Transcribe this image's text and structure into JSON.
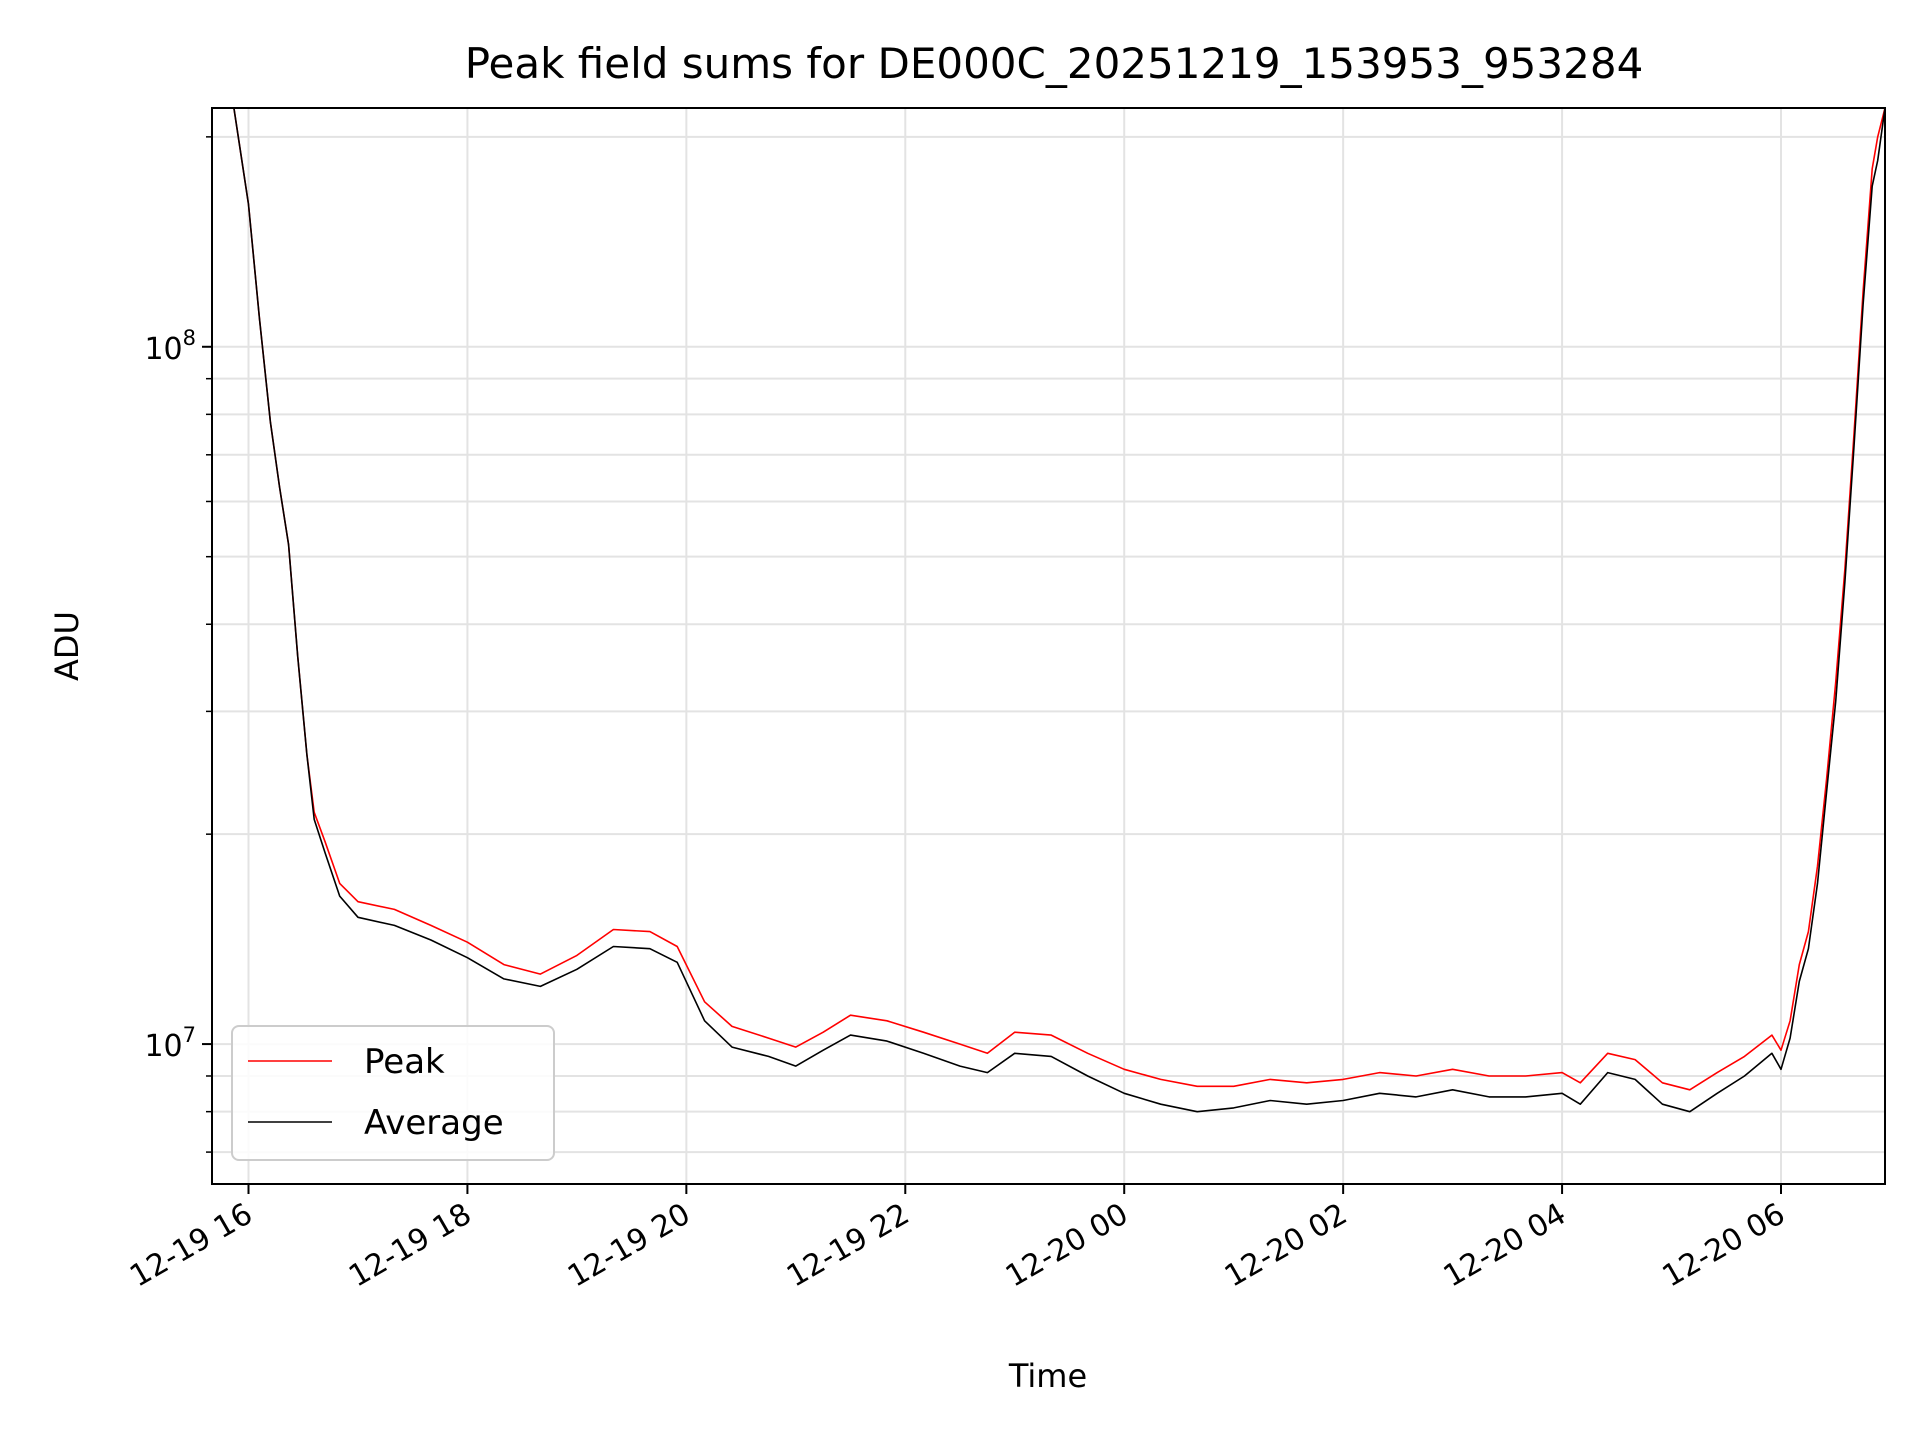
{
  "chart_data": {
    "type": "line",
    "title": "Peak field sums for DE000C_20251219_153953_953284",
    "xlabel": "Time",
    "ylabel": "ADU",
    "yscale": "log",
    "xlim": [
      "2025-12-19 15:40",
      "2025-12-20 06:57"
    ],
    "ylim": [
      6300000,
      220000000
    ],
    "x_ticks": [
      "12-19 16",
      "12-19 18",
      "12-19 20",
      "12-19 22",
      "12-20 00",
      "12-20 02",
      "12-20 04",
      "12-20 06"
    ],
    "y_ticks": [
      {
        "value": 10000000,
        "base": "10",
        "exp": "7"
      },
      {
        "value": 100000000,
        "base": "10",
        "exp": "8"
      }
    ],
    "grid": true,
    "legend_position": "lower-left",
    "series": [
      {
        "name": "Peak",
        "color": "#ff0000",
        "points": [
          [
            "2025-12-19 15:52",
            220000000
          ],
          [
            "2025-12-19 16:00",
            160000000
          ],
          [
            "2025-12-19 16:06",
            110000000
          ],
          [
            "2025-12-19 16:12",
            78000000
          ],
          [
            "2025-12-19 16:17",
            63000000
          ],
          [
            "2025-12-19 16:22",
            52000000
          ],
          [
            "2025-12-19 16:27",
            36000000
          ],
          [
            "2025-12-19 16:32",
            26000000
          ],
          [
            "2025-12-19 16:36",
            21500000
          ],
          [
            "2025-12-19 16:42",
            19500000
          ],
          [
            "2025-12-19 16:50",
            17000000
          ],
          [
            "2025-12-19 17:00",
            16000000
          ],
          [
            "2025-12-19 17:20",
            15600000
          ],
          [
            "2025-12-19 17:40",
            14800000
          ],
          [
            "2025-12-19 18:00",
            14000000
          ],
          [
            "2025-12-19 18:20",
            13000000
          ],
          [
            "2025-12-19 18:40",
            12600000
          ],
          [
            "2025-12-19 19:00",
            13400000
          ],
          [
            "2025-12-19 19:20",
            14600000
          ],
          [
            "2025-12-19 19:40",
            14500000
          ],
          [
            "2025-12-19 19:55",
            13800000
          ],
          [
            "2025-12-19 20:10",
            11500000
          ],
          [
            "2025-12-19 20:25",
            10600000
          ],
          [
            "2025-12-19 20:45",
            10200000
          ],
          [
            "2025-12-19 21:00",
            9900000
          ],
          [
            "2025-12-19 21:15",
            10400000
          ],
          [
            "2025-12-19 21:30",
            11000000
          ],
          [
            "2025-12-19 21:50",
            10800000
          ],
          [
            "2025-12-19 22:10",
            10400000
          ],
          [
            "2025-12-19 22:30",
            10000000
          ],
          [
            "2025-12-19 22:45",
            9700000
          ],
          [
            "2025-12-19 23:00",
            10400000
          ],
          [
            "2025-12-19 23:20",
            10300000
          ],
          [
            "2025-12-19 23:40",
            9700000
          ],
          [
            "2025-12-20 00:00",
            9200000
          ],
          [
            "2025-12-20 00:20",
            8900000
          ],
          [
            "2025-12-20 00:40",
            8700000
          ],
          [
            "2025-12-20 01:00",
            8700000
          ],
          [
            "2025-12-20 01:20",
            8900000
          ],
          [
            "2025-12-20 01:40",
            8800000
          ],
          [
            "2025-12-20 02:00",
            8900000
          ],
          [
            "2025-12-20 02:20",
            9100000
          ],
          [
            "2025-12-20 02:40",
            9000000
          ],
          [
            "2025-12-20 03:00",
            9200000
          ],
          [
            "2025-12-20 03:20",
            9000000
          ],
          [
            "2025-12-20 03:40",
            9000000
          ],
          [
            "2025-12-20 04:00",
            9100000
          ],
          [
            "2025-12-20 04:10",
            8800000
          ],
          [
            "2025-12-20 04:25",
            9700000
          ],
          [
            "2025-12-20 04:40",
            9500000
          ],
          [
            "2025-12-20 04:55",
            8800000
          ],
          [
            "2025-12-20 05:10",
            8600000
          ],
          [
            "2025-12-20 05:25",
            9100000
          ],
          [
            "2025-12-20 05:40",
            9600000
          ],
          [
            "2025-12-20 05:55",
            10300000
          ],
          [
            "2025-12-20 06:00",
            9800000
          ],
          [
            "2025-12-20 06:05",
            10800000
          ],
          [
            "2025-12-20 06:10",
            13000000
          ],
          [
            "2025-12-20 06:15",
            14500000
          ],
          [
            "2025-12-20 06:20",
            18000000
          ],
          [
            "2025-12-20 06:25",
            24000000
          ],
          [
            "2025-12-20 06:30",
            33000000
          ],
          [
            "2025-12-20 06:35",
            48000000
          ],
          [
            "2025-12-20 06:40",
            75000000
          ],
          [
            "2025-12-20 06:45",
            120000000
          ],
          [
            "2025-12-20 06:50",
            180000000
          ],
          [
            "2025-12-20 06:53",
            200000000
          ],
          [
            "2025-12-20 06:57",
            220000000
          ]
        ]
      },
      {
        "name": "Average",
        "color": "#000000",
        "points": [
          [
            "2025-12-19 15:52",
            220000000
          ],
          [
            "2025-12-19 16:00",
            160000000
          ],
          [
            "2025-12-19 16:06",
            110000000
          ],
          [
            "2025-12-19 16:12",
            78000000
          ],
          [
            "2025-12-19 16:17",
            63000000
          ],
          [
            "2025-12-19 16:22",
            52000000
          ],
          [
            "2025-12-19 16:27",
            36000000
          ],
          [
            "2025-12-19 16:32",
            26000000
          ],
          [
            "2025-12-19 16:36",
            21000000
          ],
          [
            "2025-12-19 16:42",
            18800000
          ],
          [
            "2025-12-19 16:50",
            16300000
          ],
          [
            "2025-12-19 17:00",
            15200000
          ],
          [
            "2025-12-19 17:20",
            14800000
          ],
          [
            "2025-12-19 17:40",
            14100000
          ],
          [
            "2025-12-19 18:00",
            13300000
          ],
          [
            "2025-12-19 18:20",
            12400000
          ],
          [
            "2025-12-19 18:40",
            12100000
          ],
          [
            "2025-12-19 19:00",
            12800000
          ],
          [
            "2025-12-19 19:20",
            13800000
          ],
          [
            "2025-12-19 19:40",
            13700000
          ],
          [
            "2025-12-19 19:55",
            13100000
          ],
          [
            "2025-12-19 20:10",
            10800000
          ],
          [
            "2025-12-19 20:25",
            9900000
          ],
          [
            "2025-12-19 20:45",
            9600000
          ],
          [
            "2025-12-19 21:00",
            9300000
          ],
          [
            "2025-12-19 21:15",
            9800000
          ],
          [
            "2025-12-19 21:30",
            10300000
          ],
          [
            "2025-12-19 21:50",
            10100000
          ],
          [
            "2025-12-19 22:10",
            9700000
          ],
          [
            "2025-12-19 22:30",
            9300000
          ],
          [
            "2025-12-19 22:45",
            9100000
          ],
          [
            "2025-12-19 23:00",
            9700000
          ],
          [
            "2025-12-19 23:20",
            9600000
          ],
          [
            "2025-12-19 23:40",
            9000000
          ],
          [
            "2025-12-20 00:00",
            8500000
          ],
          [
            "2025-12-20 00:20",
            8200000
          ],
          [
            "2025-12-20 00:40",
            8000000
          ],
          [
            "2025-12-20 01:00",
            8100000
          ],
          [
            "2025-12-20 01:20",
            8300000
          ],
          [
            "2025-12-20 01:40",
            8200000
          ],
          [
            "2025-12-20 02:00",
            8300000
          ],
          [
            "2025-12-20 02:20",
            8500000
          ],
          [
            "2025-12-20 02:40",
            8400000
          ],
          [
            "2025-12-20 03:00",
            8600000
          ],
          [
            "2025-12-20 03:20",
            8400000
          ],
          [
            "2025-12-20 03:40",
            8400000
          ],
          [
            "2025-12-20 04:00",
            8500000
          ],
          [
            "2025-12-20 04:10",
            8200000
          ],
          [
            "2025-12-20 04:25",
            9100000
          ],
          [
            "2025-12-20 04:40",
            8900000
          ],
          [
            "2025-12-20 04:55",
            8200000
          ],
          [
            "2025-12-20 05:10",
            8000000
          ],
          [
            "2025-12-20 05:25",
            8500000
          ],
          [
            "2025-12-20 05:40",
            9000000
          ],
          [
            "2025-12-20 05:55",
            9700000
          ],
          [
            "2025-12-20 06:00",
            9200000
          ],
          [
            "2025-12-20 06:05",
            10200000
          ],
          [
            "2025-12-20 06:10",
            12300000
          ],
          [
            "2025-12-20 06:15",
            13700000
          ],
          [
            "2025-12-20 06:20",
            17000000
          ],
          [
            "2025-12-20 06:25",
            23000000
          ],
          [
            "2025-12-20 06:30",
            31000000
          ],
          [
            "2025-12-20 06:35",
            46000000
          ],
          [
            "2025-12-20 06:40",
            72000000
          ],
          [
            "2025-12-20 06:45",
            115000000
          ],
          [
            "2025-12-20 06:50",
            170000000
          ],
          [
            "2025-12-20 06:53",
            185000000
          ],
          [
            "2025-12-20 06:57",
            220000000
          ]
        ]
      }
    ]
  }
}
